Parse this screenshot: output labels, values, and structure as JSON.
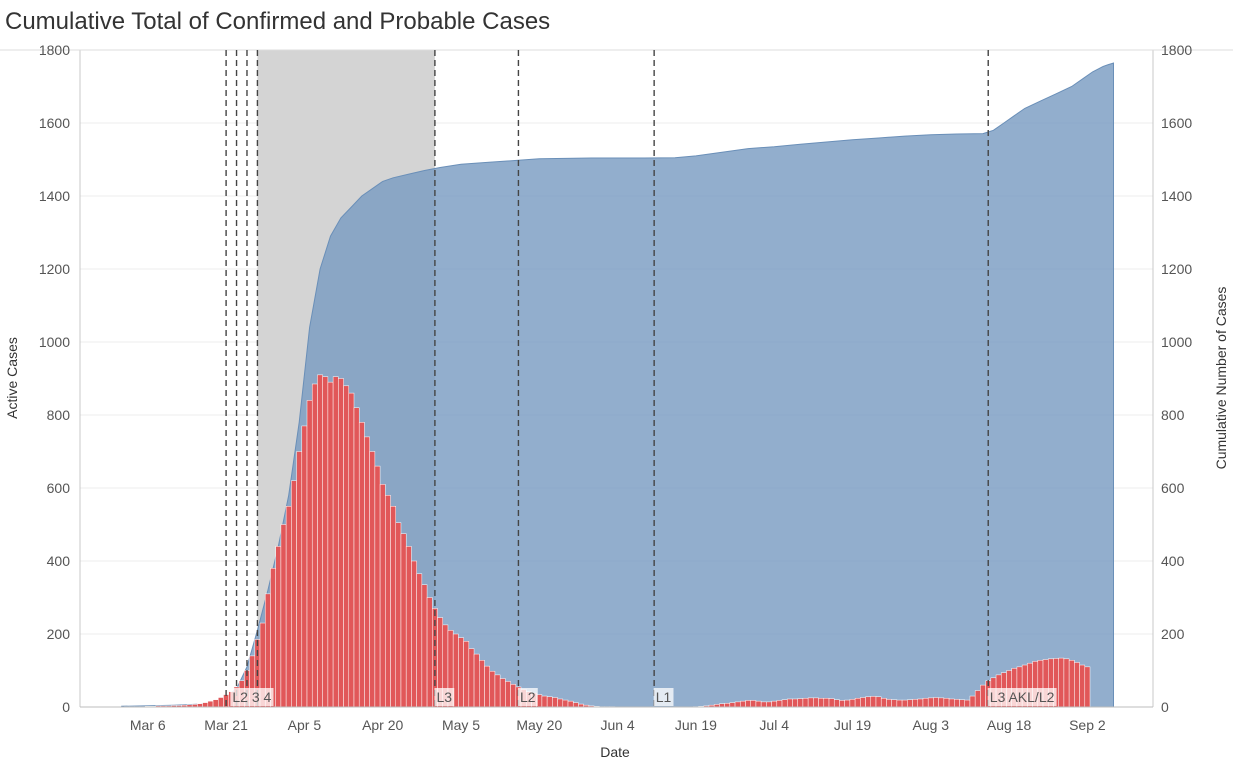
{
  "chart_data": {
    "type": "bar",
    "title": "Cumulative Total of Confirmed and Probable Cases",
    "xlabel": "Date",
    "ylabel_left": "Active Cases",
    "ylabel_right": "Cumulative Number of Cases",
    "ylim": [
      0,
      1800
    ],
    "y_ticks": [
      "0",
      "200",
      "400",
      "600",
      "800",
      "1000",
      "1200",
      "1400",
      "1600",
      "1800"
    ],
    "x_ticks": [
      {
        "label": "Mar 6",
        "day": 5
      },
      {
        "label": "Mar 21",
        "day": 20
      },
      {
        "label": "Apr 5",
        "day": 35
      },
      {
        "label": "Apr 20",
        "day": 50
      },
      {
        "label": "May 5",
        "day": 65
      },
      {
        "label": "May 20",
        "day": 80
      },
      {
        "label": "Jun 4",
        "day": 95
      },
      {
        "label": "Jun 19",
        "day": 110
      },
      {
        "label": "Jul 4",
        "day": 125
      },
      {
        "label": "Jul 19",
        "day": 140
      },
      {
        "label": "Aug 3",
        "day": 155
      },
      {
        "label": "Aug 18",
        "day": 170
      },
      {
        "label": "Sep 2",
        "day": 185
      }
    ],
    "day_zero": "Mar 1",
    "grid": true,
    "shaded_region": {
      "start_day": 26,
      "end_day": 60,
      "color": "#d4d4d4"
    },
    "level_lines": [
      {
        "day": 20,
        "label": ""
      },
      {
        "day": 22,
        "label": ""
      },
      {
        "day": 24,
        "label": ""
      },
      {
        "day": 26,
        "label": ""
      },
      {
        "day": 60,
        "label": ""
      },
      {
        "day": 76,
        "label": ""
      },
      {
        "day": 102,
        "label": ""
      },
      {
        "day": 166,
        "label": ""
      }
    ],
    "annotations": [
      {
        "day": 21.2,
        "text": "L2 3 4"
      },
      {
        "day": 60.3,
        "text": "L3"
      },
      {
        "day": 76.3,
        "text": "L2"
      },
      {
        "day": 102.3,
        "text": "L1"
      },
      {
        "day": 166.3,
        "text": "L3 AKL/L2"
      }
    ],
    "series": [
      {
        "name": "Cumulative Number of Cases",
        "type": "area",
        "color": "#7a9cc2",
        "points": [
          [
            0,
            2
          ],
          [
            10,
            5
          ],
          [
            15,
            8
          ],
          [
            18,
            14
          ],
          [
            20,
            28
          ],
          [
            22,
            50
          ],
          [
            24,
            110
          ],
          [
            26,
            210
          ],
          [
            28,
            320
          ],
          [
            30,
            440
          ],
          [
            32,
            580
          ],
          [
            34,
            780
          ],
          [
            36,
            1040
          ],
          [
            38,
            1200
          ],
          [
            40,
            1290
          ],
          [
            42,
            1340
          ],
          [
            44,
            1370
          ],
          [
            46,
            1400
          ],
          [
            48,
            1420
          ],
          [
            50,
            1440
          ],
          [
            52,
            1450
          ],
          [
            55,
            1460
          ],
          [
            58,
            1470
          ],
          [
            61,
            1478
          ],
          [
            65,
            1487
          ],
          [
            70,
            1492
          ],
          [
            75,
            1497
          ],
          [
            80,
            1502
          ],
          [
            90,
            1504
          ],
          [
            100,
            1504
          ],
          [
            106,
            1505
          ],
          [
            110,
            1510
          ],
          [
            115,
            1520
          ],
          [
            120,
            1530
          ],
          [
            125,
            1535
          ],
          [
            130,
            1542
          ],
          [
            135,
            1548
          ],
          [
            140,
            1554
          ],
          [
            145,
            1559
          ],
          [
            150,
            1564
          ],
          [
            155,
            1568
          ],
          [
            160,
            1570
          ],
          [
            165,
            1571
          ],
          [
            167,
            1580
          ],
          [
            169,
            1600
          ],
          [
            171,
            1620
          ],
          [
            173,
            1640
          ],
          [
            176,
            1660
          ],
          [
            179,
            1680
          ],
          [
            182,
            1700
          ],
          [
            184,
            1720
          ],
          [
            186,
            1740
          ],
          [
            188,
            1755
          ],
          [
            189,
            1760
          ],
          [
            190,
            1764
          ]
        ]
      },
      {
        "name": "Active Cases",
        "type": "bar",
        "color": "#e15759",
        "start_day": 1,
        "values": [
          1,
          1,
          1,
          1,
          2,
          2,
          3,
          3,
          3,
          4,
          4,
          5,
          6,
          7,
          9,
          12,
          16,
          20,
          26,
          34,
          42,
          55,
          72,
          100,
          140,
          185,
          230,
          310,
          380,
          440,
          500,
          550,
          620,
          700,
          770,
          840,
          885,
          910,
          905,
          890,
          905,
          900,
          880,
          860,
          820,
          780,
          740,
          700,
          660,
          610,
          580,
          550,
          505,
          475,
          440,
          400,
          365,
          335,
          300,
          270,
          245,
          225,
          210,
          200,
          190,
          180,
          160,
          145,
          128,
          112,
          98,
          88,
          78,
          70,
          62,
          55,
          48,
          42,
          38,
          34,
          30,
          28,
          26,
          22,
          19,
          16,
          12,
          8,
          5,
          3,
          2,
          1,
          1,
          1,
          0,
          0,
          0,
          0,
          0,
          0,
          0,
          0,
          0,
          0,
          0,
          0,
          0,
          0,
          0,
          1,
          2,
          3,
          5,
          7,
          9,
          10,
          12,
          14,
          16,
          18,
          18,
          16,
          14,
          14,
          16,
          18,
          20,
          22,
          22,
          23,
          24,
          25,
          25,
          24,
          24,
          23,
          20,
          18,
          19,
          21,
          24,
          26,
          28,
          29,
          28,
          24,
          21,
          20,
          19,
          19,
          20,
          21,
          22,
          24,
          25,
          26,
          25,
          24,
          22,
          21,
          20,
          19,
          30,
          45,
          60,
          72,
          80,
          88,
          94,
          100,
          106,
          110,
          115,
          120,
          125,
          128,
          130,
          132,
          133,
          134,
          132,
          128,
          122,
          115,
          110
        ]
      }
    ]
  }
}
